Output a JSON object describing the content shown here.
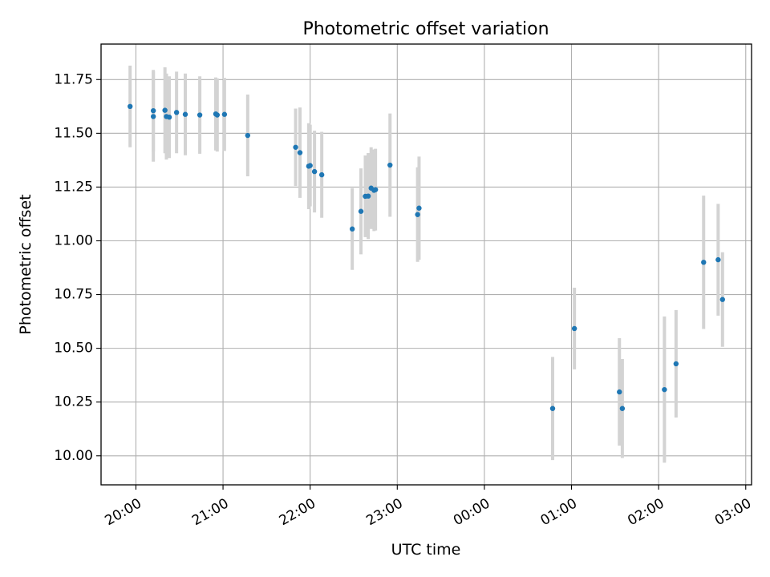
{
  "chart_data": {
    "type": "scatter",
    "title": "Photometric offset variation",
    "xlabel": "UTC time",
    "ylabel": "Photometric offset",
    "x_is_time": true,
    "x_range": [
      "19:36",
      "03:04"
    ],
    "x_ticks": [
      "20:00",
      "21:00",
      "22:00",
      "23:00",
      "00:00",
      "01:00",
      "02:00",
      "03:00"
    ],
    "ylim": [
      9.865,
      11.915
    ],
    "y_ticks": [
      "10.00",
      "10.25",
      "10.50",
      "10.75",
      "11.00",
      "11.25",
      "11.50",
      "11.75"
    ],
    "grid": true,
    "point_color": "#1f77b4",
    "errorbar_color": "#d3d3d3",
    "points": [
      {
        "x": "19:56",
        "y": 11.625,
        "err": 0.19
      },
      {
        "x": "20:12",
        "y": 11.605,
        "err": 0.19
      },
      {
        "x": "20:12",
        "y": 11.578,
        "err": 0.21
      },
      {
        "x": "20:20",
        "y": 11.607,
        "err": 0.2
      },
      {
        "x": "20:21",
        "y": 11.578,
        "err": 0.2
      },
      {
        "x": "20:23",
        "y": 11.575,
        "err": 0.19
      },
      {
        "x": "20:28",
        "y": 11.597,
        "err": 0.19
      },
      {
        "x": "20:34",
        "y": 11.588,
        "err": 0.19
      },
      {
        "x": "20:44",
        "y": 11.585,
        "err": 0.18
      },
      {
        "x": "20:55",
        "y": 11.59,
        "err": 0.17
      },
      {
        "x": "20:56",
        "y": 11.585,
        "err": 0.17
      },
      {
        "x": "21:01",
        "y": 11.588,
        "err": 0.17
      },
      {
        "x": "21:17",
        "y": 11.49,
        "err": 0.19
      },
      {
        "x": "21:50",
        "y": 11.435,
        "err": 0.18
      },
      {
        "x": "21:53",
        "y": 11.41,
        "err": 0.21
      },
      {
        "x": "21:59",
        "y": 11.347,
        "err": 0.2
      },
      {
        "x": "22:00",
        "y": 11.35,
        "err": 0.19
      },
      {
        "x": "22:03",
        "y": 11.322,
        "err": 0.19
      },
      {
        "x": "22:08",
        "y": 11.307,
        "err": 0.2
      },
      {
        "x": "22:29",
        "y": 11.055,
        "err": 0.19
      },
      {
        "x": "22:35",
        "y": 11.137,
        "err": 0.2
      },
      {
        "x": "22:38",
        "y": 11.207,
        "err": 0.19
      },
      {
        "x": "22:40",
        "y": 11.208,
        "err": 0.2
      },
      {
        "x": "22:42",
        "y": 11.245,
        "err": 0.19
      },
      {
        "x": "22:44",
        "y": 11.235,
        "err": 0.19
      },
      {
        "x": "22:45",
        "y": 11.238,
        "err": 0.19
      },
      {
        "x": "22:55",
        "y": 11.352,
        "err": 0.24
      },
      {
        "x": "23:14",
        "y": 11.122,
        "err": 0.22
      },
      {
        "x": "23:15",
        "y": 11.152,
        "err": 0.24
      },
      {
        "x": "00:47",
        "y": 10.22,
        "err": 0.24
      },
      {
        "x": "01:02",
        "y": 10.592,
        "err": 0.19
      },
      {
        "x": "01:33",
        "y": 10.297,
        "err": 0.25
      },
      {
        "x": "01:35",
        "y": 10.22,
        "err": 0.23
      },
      {
        "x": "02:04",
        "y": 10.308,
        "err": 0.34
      },
      {
        "x": "02:12",
        "y": 10.428,
        "err": 0.25
      },
      {
        "x": "02:31",
        "y": 10.9,
        "err": 0.31
      },
      {
        "x": "02:41",
        "y": 10.912,
        "err": 0.26
      },
      {
        "x": "02:44",
        "y": 10.727,
        "err": 0.22
      }
    ]
  }
}
